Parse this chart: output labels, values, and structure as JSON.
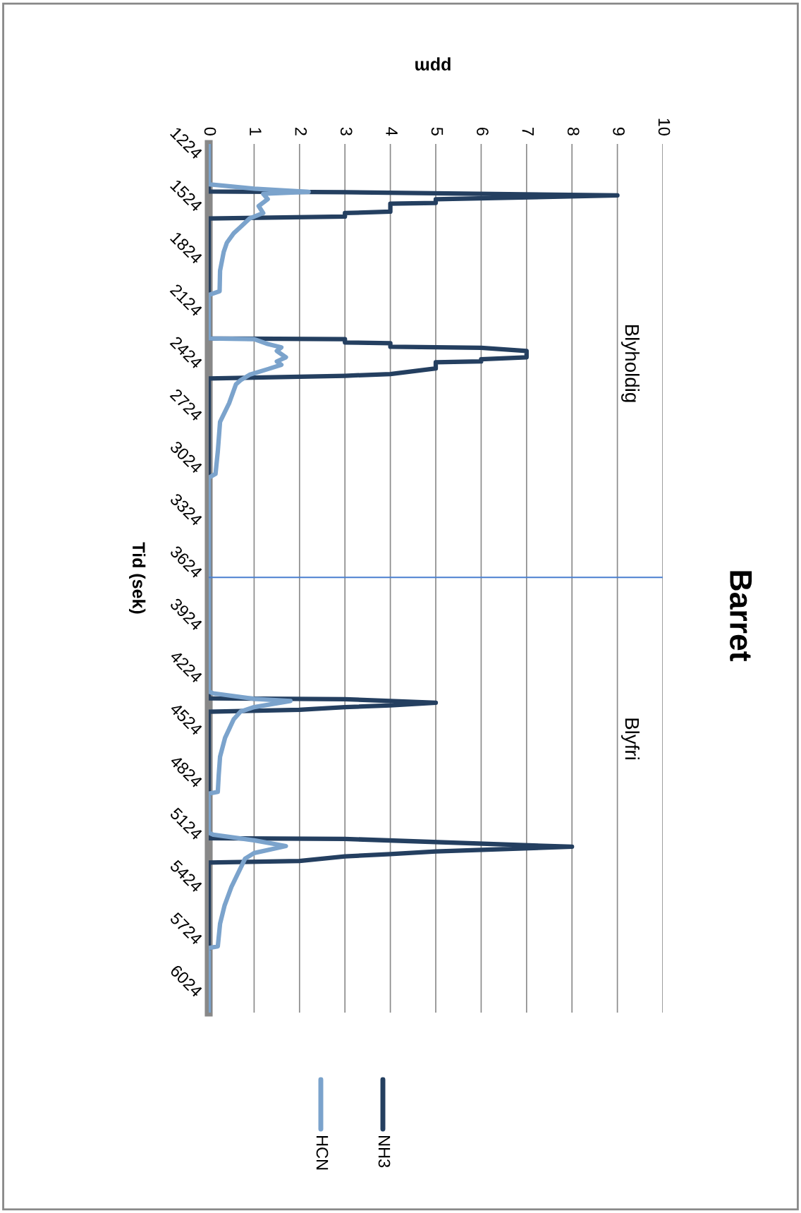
{
  "chart_data": {
    "type": "line",
    "title": "Barret",
    "xlabel": "ppm",
    "ylabel": "Tid (sek)",
    "ylim": [
      6200,
      1224
    ],
    "yticks": [
      1224,
      1524,
      1824,
      2124,
      2424,
      2724,
      3024,
      3324,
      3624,
      3924,
      4224,
      4524,
      4824,
      5124,
      5424,
      5724,
      6024
    ],
    "xlim": [
      0,
      10
    ],
    "xticks": [
      0,
      1,
      2,
      3,
      4,
      5,
      6,
      7,
      8,
      9,
      10
    ],
    "grid": "x",
    "legend": "bottom",
    "marker": "none",
    "line_style": "solid",
    "series": [
      {
        "name": "NH3",
        "color": "#243f60",
        "values": [
          1224,
          1496,
          1500,
          1519,
          1541,
          1562,
          1566,
          1612,
          1620,
          1640,
          1651,
          2338,
          2342,
          2361,
          2365,
          2386,
          2392,
          2410,
          2446,
          2457,
          2470,
          2475,
          2510,
          2542,
          2552,
          2568,
          4400,
          4405,
          4425,
          4440,
          4450,
          4465,
          4476,
          5201,
          5205,
          5250,
          5277,
          5292,
          5305,
          5331,
          5341,
          6200
        ],
        "x": [
          0,
          0,
          3,
          9,
          5,
          5,
          4,
          4,
          3,
          3,
          0,
          0,
          3,
          3,
          4,
          4,
          6,
          7,
          7,
          6,
          6,
          5,
          5,
          4,
          3,
          0,
          0,
          3,
          5,
          4,
          3,
          2,
          0,
          0,
          3,
          8,
          5,
          4,
          3,
          2,
          0,
          0
        ]
      },
      {
        "name": "HCN",
        "color": "#7ba3cc",
        "values": [
          1224,
          1455,
          1480,
          1498,
          1510,
          1540,
          1580,
          1620,
          1651,
          1700,
          1736,
          1790,
          1843,
          1950,
          2068,
          2089,
          2338,
          2342,
          2370,
          2389,
          2410,
          2446,
          2470,
          2489,
          2514,
          2546,
          2578,
          2601,
          2709,
          2816,
          2986,
          3114,
          3136,
          4360,
          4371,
          4403,
          4415,
          4450,
          4476,
          4520,
          4626,
          4734,
          4841,
          4936,
          4946,
          5170,
          5181,
          5213,
          5246,
          5286,
          5318,
          5373,
          5480,
          5586,
          5691,
          5821,
          5830,
          6200
        ],
        "x": [
          0,
          0,
          1,
          2.2,
          1.2,
          1.3,
          1.1,
          1.2,
          0.9,
          0.7,
          0.55,
          0.4,
          0.33,
          0.25,
          0.24,
          0,
          0,
          1,
          1.3,
          1.6,
          1.5,
          1.7,
          1.5,
          1.6,
          1.3,
          0.9,
          0.7,
          0.6,
          0.45,
          0.25,
          0.2,
          0.15,
          0,
          0,
          0.1,
          1,
          1.8,
          1,
          0.7,
          0.55,
          0.36,
          0.25,
          0.22,
          0.2,
          0,
          0,
          0.1,
          1,
          1.7,
          1,
          0.8,
          0.7,
          0.5,
          0.35,
          0.25,
          0.2,
          0,
          0
        ]
      }
    ],
    "ref_lines": [
      {
        "axis": "y",
        "value": 3707,
        "color": "#4a7fd0"
      }
    ],
    "annotations": [
      "Blyholdig",
      "Blyfri"
    ]
  }
}
